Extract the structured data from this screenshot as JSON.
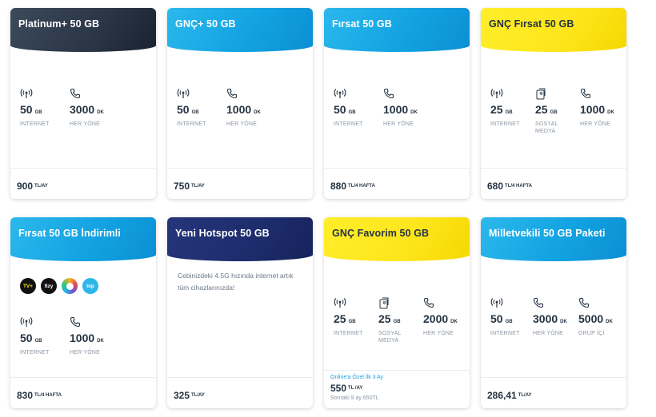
{
  "cards": [
    {
      "title": "Platinum+ 50 GB",
      "features": [
        {
          "icon": "signal-icon",
          "value": "50",
          "unit": "GB",
          "label": "INTERNET"
        },
        {
          "icon": "phone-icon",
          "value": "3000",
          "unit": "DK",
          "label": "HER YÖNE"
        }
      ],
      "price": "900",
      "period": "TL/AY"
    },
    {
      "title": "GNÇ+ 50 GB",
      "features": [
        {
          "icon": "signal-icon",
          "value": "50",
          "unit": "GB",
          "label": "INTERNET"
        },
        {
          "icon": "phone-icon",
          "value": "1000",
          "unit": "DK",
          "label": "HER YÖNE"
        }
      ],
      "price": "750",
      "period": "TL/AY"
    },
    {
      "title": "Fırsat 50 GB",
      "features": [
        {
          "icon": "signal-icon",
          "value": "50",
          "unit": "GB",
          "label": "INTERNET"
        },
        {
          "icon": "phone-icon",
          "value": "1000",
          "unit": "DK",
          "label": "HER YÖNE"
        }
      ],
      "price": "880",
      "period": "TL/4 HAFTA"
    },
    {
      "title": "GNÇ Fırsat 50 GB",
      "features": [
        {
          "icon": "signal-icon",
          "value": "25",
          "unit": "GB",
          "label": "INTERNET"
        },
        {
          "icon": "social-media-icon",
          "value": "25",
          "unit": "GB",
          "label": "SOSYAL",
          "label2": "MEDYA"
        },
        {
          "icon": "phone-icon",
          "value": "1000",
          "unit": "DK",
          "label": "HER YÖNE"
        }
      ],
      "price": "680",
      "period": "TL/4 HAFTA"
    },
    {
      "title": "Fırsat 50 GB İndirimli",
      "apps": [
        "TV+",
        "fizy",
        "lifebox",
        "bip"
      ],
      "features": [
        {
          "icon": "signal-icon",
          "value": "50",
          "unit": "GB",
          "label": "INTERNET"
        },
        {
          "icon": "phone-icon",
          "value": "1000",
          "unit": "DK",
          "label": "HER YÖNE"
        }
      ],
      "price": "830",
      "period": "TL/4 HAFTA"
    },
    {
      "title": "Yeni Hotspot 50 GB",
      "description": "Cebinizdeki 4.5G hızında internet artık tüm cihazlarınızda!",
      "price": "325",
      "period": "TL/AY"
    },
    {
      "title": "GNÇ Favorim 50 GB",
      "features": [
        {
          "icon": "signal-icon",
          "value": "25",
          "unit": "GB",
          "label": "INTERNET"
        },
        {
          "icon": "social-media-icon",
          "value": "25",
          "unit": "GB",
          "label": "SOSYAL",
          "label2": "MEDYA"
        },
        {
          "icon": "phone-icon",
          "value": "2000",
          "unit": "DK",
          "label": "HER YÖNE"
        }
      ],
      "promo_label": "Online'a Özel İlk 3 Ay",
      "price": "550",
      "period": "TL /AY",
      "after_price": "Sonraki 9 ay 650TL"
    },
    {
      "title": "Milletvekili 50 GB Paketi",
      "features": [
        {
          "icon": "signal-icon",
          "value": "50",
          "unit": "GB",
          "label": "INTERNET"
        },
        {
          "icon": "phone-icon",
          "value": "3000",
          "unit": "DK",
          "label": "HER YÖNE"
        },
        {
          "icon": "phone-icon",
          "value": "5000",
          "unit": "DK",
          "label": "GRUP İÇİ"
        }
      ],
      "price": "286,41",
      "period": "TL/AY"
    }
  ],
  "colors": {
    "dark": "#2a3545",
    "blue": "#13a3e2",
    "yellow": "#fde51b",
    "navy": "#1d2c6c",
    "accent": "#17a3e2"
  }
}
